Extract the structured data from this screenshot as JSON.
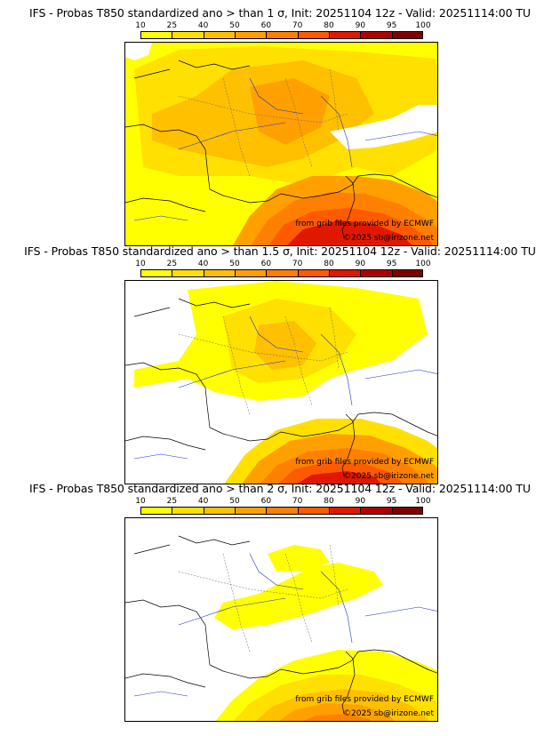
{
  "panels": [
    {
      "title": "IFS - Probas T850  standardized ano > than 1 σ, Init: 20251104 12z - Valid: 20251114:00 TU",
      "credit_source": "from grib files provided by ECMWF",
      "credit_copyright": "©2025 sb@irizone.net"
    },
    {
      "title": "IFS - Probas T850  standardized ano > than 1.5 σ, Init: 20251104 12z - Valid: 20251114:00 TU",
      "credit_source": "from grib files provided by ECMWF",
      "credit_copyright": "©2025 sb@irizone.net"
    },
    {
      "title": "IFS - Probas T850  standardized ano > than 2 σ, Init: 20251104 12z - Valid: 20251114:00 TU",
      "credit_source": "from grib files provided by ECMWF",
      "credit_copyright": "©2025 sb@irizone.net"
    }
  ],
  "colorbar": {
    "labels": [
      "10",
      "25",
      "40",
      "50",
      "60",
      "70",
      "80",
      "90",
      "95",
      "100"
    ],
    "colors": [
      "#ffff00",
      "#ffe000",
      "#ffc000",
      "#ffa000",
      "#ff8000",
      "#ff5a00",
      "#e01800",
      "#b00000",
      "#800000"
    ]
  },
  "fill_colors": {
    "none": "#ffffff",
    "p10": "#ffff00",
    "p25": "#ffe000",
    "p40": "#ffc000",
    "p50": "#ffa000",
    "p60": "#ff8000",
    "p70": "#ff5a00",
    "p80": "#e01800"
  }
}
